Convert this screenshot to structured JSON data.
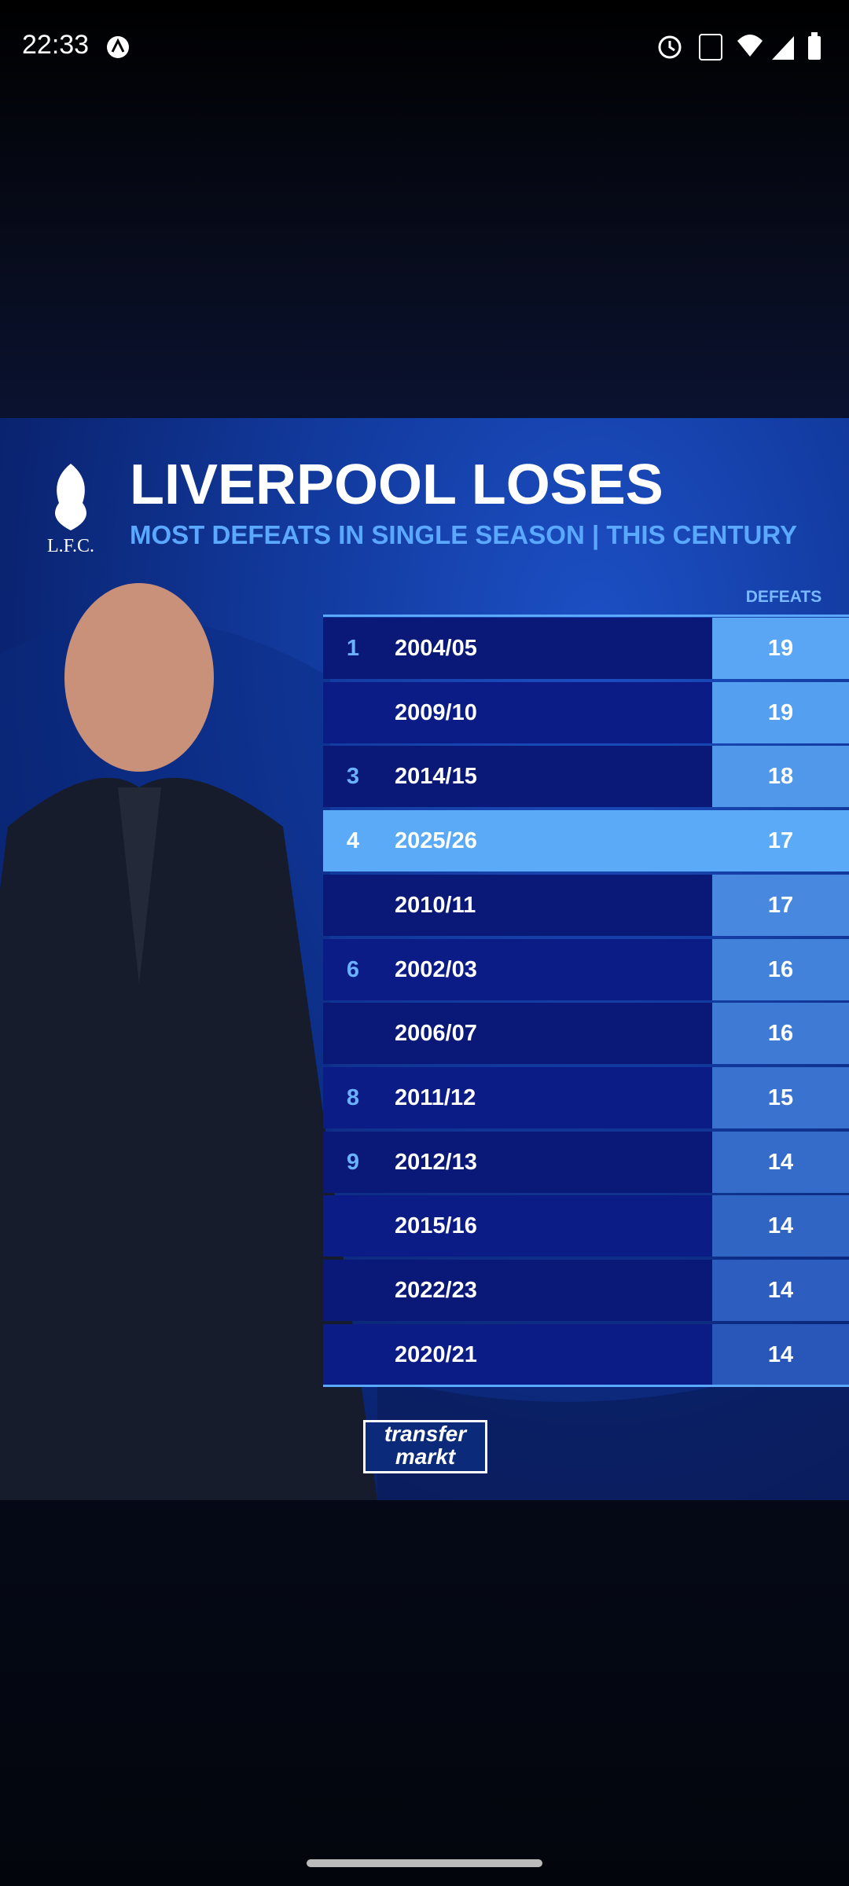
{
  "status_bar": {
    "time": "22:33"
  },
  "header": {
    "club_logo": "L.F.C.",
    "title": "LIVERPOOL LOSES",
    "subtitle": "MOST DEFEATS IN SINGLE SEASON | THIS CENTURY"
  },
  "table": {
    "column_header": "DEFEATS",
    "highlight_row": 3,
    "rows": [
      {
        "rank": "1",
        "season": "2004/05",
        "defeats": 19
      },
      {
        "season": "2009/10",
        "defeats": 19
      },
      {
        "rank": "3",
        "season": "2014/15",
        "defeats": 18
      },
      {
        "rank": "4",
        "season": "2025/26",
        "defeats": 17
      },
      {
        "season": "2010/11",
        "defeats": 17
      },
      {
        "rank": "6",
        "season": "2002/03",
        "defeats": 16
      },
      {
        "season": "2006/07",
        "defeats": 16
      },
      {
        "rank": "8",
        "season": "2011/12",
        "defeats": 15
      },
      {
        "rank": "9",
        "season": "2012/13",
        "defeats": 14
      },
      {
        "season": "2015/16",
        "defeats": 14
      },
      {
        "season": "2022/23",
        "defeats": 14
      },
      {
        "season": "2020/21",
        "defeats": 14
      }
    ]
  },
  "footer": {
    "logo_top": "transfer",
    "logo_bottom": "markt"
  }
}
